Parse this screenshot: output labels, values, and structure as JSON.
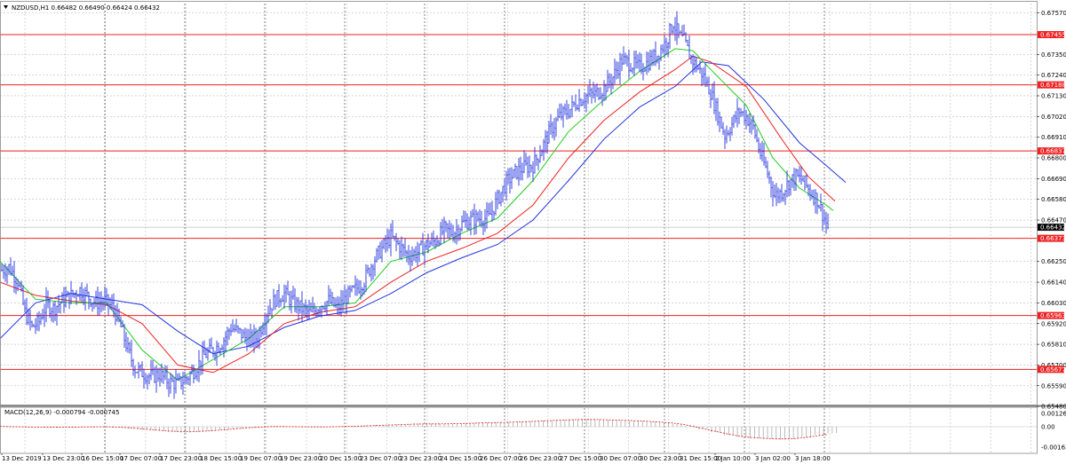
{
  "header": {
    "menu_icon": "triangle-down-icon",
    "text": "NZDUSD,H1  0.66482 0.66490 0.66424 0.66432"
  },
  "macd": {
    "label": "MACD(12,26,9) -0.000794 -0.000745",
    "ticks": [
      "0.001261",
      "0.00",
      "-0.001639"
    ]
  },
  "colors": {
    "candles": "#2233dd",
    "ma_fast": "#22cc22",
    "ma_mid": "#ee2222",
    "ma_slow": "#2233dd",
    "level_line": "#ee2222",
    "level_label_bg": "#ee2222",
    "current_label_bg": "#000000"
  },
  "chart_data": {
    "type": "line",
    "price_axis": {
      "ylim": [
        0.6549,
        0.6762
      ],
      "ticks": [
        "0.67570",
        "0.67455",
        "0.67350",
        "0.67240",
        "0.67188",
        "0.67130",
        "0.67020",
        "0.66910",
        "0.66837",
        "0.66800",
        "0.66690",
        "0.66580",
        "0.66470",
        "0.66373",
        "0.66250",
        "0.66140",
        "0.66030",
        "0.65963",
        "0.65920",
        "0.65810",
        "0.65700",
        "0.65677",
        "0.65590",
        "0.65480"
      ]
    },
    "levels": [
      "0.67455",
      "0.67188",
      "0.66837",
      "0.66373",
      "0.65963",
      "0.65677"
    ],
    "current_price": "0.66432",
    "x_labels": [
      "13 Dec 2019",
      "13 Dec 23:00",
      "16 Dec 15:00",
      "17 Dec 07:00",
      "17 Dec 23:00",
      "18 Dec 15:00",
      "19 Dec 07:00",
      "19 Dec 23:00",
      "20 Dec 15:00",
      "23 Dec 07:00",
      "23 Dec 23:00",
      "24 Dec 15:00",
      "26 Dec 07:00",
      "26 Dec 23:00",
      "27 Dec 15:00",
      "30 Dec 07:00",
      "30 Dec 23:00",
      "31 Dec 15:00",
      "2 Jan 10:00",
      "3 Jan 02:00",
      "3 Jan 18:00"
    ],
    "price_path": [
      [
        0,
        0.662
      ],
      [
        10,
        0.6622
      ],
      [
        20,
        0.6615
      ],
      [
        28,
        0.6598
      ],
      [
        36,
        0.659
      ],
      [
        44,
        0.6593
      ],
      [
        52,
        0.6602
      ],
      [
        60,
        0.66
      ],
      [
        70,
        0.6604
      ],
      [
        80,
        0.6607
      ],
      [
        90,
        0.661
      ],
      [
        100,
        0.6606
      ],
      [
        108,
        0.6603
      ],
      [
        118,
        0.6604
      ],
      [
        128,
        0.66
      ],
      [
        136,
        0.659
      ],
      [
        144,
        0.6578
      ],
      [
        152,
        0.6568
      ],
      [
        160,
        0.6566
      ],
      [
        170,
        0.6564
      ],
      [
        180,
        0.6565
      ],
      [
        190,
        0.6561
      ],
      [
        200,
        0.656
      ],
      [
        210,
        0.6563
      ],
      [
        220,
        0.6568
      ],
      [
        230,
        0.6575
      ],
      [
        240,
        0.6578
      ],
      [
        250,
        0.6582
      ],
      [
        260,
        0.659
      ],
      [
        270,
        0.6587
      ],
      [
        280,
        0.6583
      ],
      [
        290,
        0.6585
      ],
      [
        300,
        0.6598
      ],
      [
        310,
        0.6605
      ],
      [
        320,
        0.6608
      ],
      [
        330,
        0.6603
      ],
      [
        340,
        0.66
      ],
      [
        350,
        0.6597
      ],
      [
        360,
        0.6602
      ],
      [
        370,
        0.6604
      ],
      [
        380,
        0.66
      ],
      [
        390,
        0.6606
      ],
      [
        400,
        0.661
      ],
      [
        410,
        0.6615
      ],
      [
        420,
        0.6625
      ],
      [
        430,
        0.6632
      ],
      [
        440,
        0.6638
      ],
      [
        450,
        0.6633
      ],
      [
        460,
        0.6628
      ],
      [
        470,
        0.663
      ],
      [
        480,
        0.6634
      ],
      [
        490,
        0.6636
      ],
      [
        500,
        0.6642
      ],
      [
        510,
        0.664
      ],
      [
        520,
        0.6645
      ],
      [
        530,
        0.6647
      ],
      [
        540,
        0.6648
      ],
      [
        550,
        0.6648
      ],
      [
        560,
        0.6658
      ],
      [
        570,
        0.6667
      ],
      [
        580,
        0.6672
      ],
      [
        590,
        0.6675
      ],
      [
        600,
        0.6676
      ],
      [
        610,
        0.6685
      ],
      [
        620,
        0.6695
      ],
      [
        630,
        0.6702
      ],
      [
        640,
        0.6705
      ],
      [
        650,
        0.671
      ],
      [
        660,
        0.6713
      ],
      [
        670,
        0.6714
      ],
      [
        680,
        0.6717
      ],
      [
        690,
        0.6723
      ],
      [
        700,
        0.6732
      ],
      [
        710,
        0.673
      ],
      [
        720,
        0.6728
      ],
      [
        730,
        0.6731
      ],
      [
        740,
        0.6735
      ],
      [
        750,
        0.6742
      ],
      [
        758,
        0.6752
      ],
      [
        764,
        0.6745
      ],
      [
        770,
        0.6742
      ],
      [
        776,
        0.6735
      ],
      [
        782,
        0.673
      ],
      [
        790,
        0.6725
      ],
      [
        800,
        0.6715
      ],
      [
        808,
        0.6703
      ],
      [
        816,
        0.6692
      ],
      [
        824,
        0.6698
      ],
      [
        832,
        0.6705
      ],
      [
        840,
        0.6702
      ],
      [
        848,
        0.6696
      ],
      [
        856,
        0.6682
      ],
      [
        864,
        0.6672
      ],
      [
        872,
        0.666
      ],
      [
        880,
        0.6662
      ],
      [
        888,
        0.6667
      ],
      [
        896,
        0.667
      ],
      [
        904,
        0.6668
      ],
      [
        912,
        0.6662
      ],
      [
        920,
        0.6658
      ],
      [
        928,
        0.6648
      ],
      [
        932,
        0.6643
      ]
    ],
    "ma_fast_path": [
      [
        0,
        0.6625
      ],
      [
        40,
        0.6605
      ],
      [
        80,
        0.6603
      ],
      [
        120,
        0.6603
      ],
      [
        160,
        0.6578
      ],
      [
        200,
        0.6562
      ],
      [
        240,
        0.6573
      ],
      [
        280,
        0.6584
      ],
      [
        320,
        0.6601
      ],
      [
        360,
        0.6601
      ],
      [
        400,
        0.6603
      ],
      [
        440,
        0.6625
      ],
      [
        480,
        0.663
      ],
      [
        520,
        0.664
      ],
      [
        560,
        0.6648
      ],
      [
        600,
        0.6668
      ],
      [
        640,
        0.6694
      ],
      [
        680,
        0.6711
      ],
      [
        720,
        0.6726
      ],
      [
        760,
        0.6738
      ],
      [
        780,
        0.6737
      ],
      [
        800,
        0.6727
      ],
      [
        840,
        0.6708
      ],
      [
        870,
        0.668
      ],
      [
        900,
        0.6664
      ],
      [
        930,
        0.6655
      ],
      [
        938,
        0.6652
      ]
    ],
    "ma_mid_path": [
      [
        0,
        0.6614
      ],
      [
        40,
        0.6607
      ],
      [
        80,
        0.6604
      ],
      [
        120,
        0.6602
      ],
      [
        160,
        0.6592
      ],
      [
        200,
        0.657
      ],
      [
        240,
        0.6566
      ],
      [
        280,
        0.6576
      ],
      [
        320,
        0.6592
      ],
      [
        360,
        0.6598
      ],
      [
        400,
        0.6601
      ],
      [
        440,
        0.6614
      ],
      [
        480,
        0.6625
      ],
      [
        520,
        0.6632
      ],
      [
        560,
        0.664
      ],
      [
        600,
        0.6655
      ],
      [
        640,
        0.668
      ],
      [
        680,
        0.67
      ],
      [
        720,
        0.6715
      ],
      [
        760,
        0.6727
      ],
      [
        780,
        0.6734
      ],
      [
        800,
        0.6731
      ],
      [
        840,
        0.6718
      ],
      [
        880,
        0.669
      ],
      [
        910,
        0.667
      ],
      [
        940,
        0.6657
      ]
    ],
    "ma_slow_path": [
      [
        0,
        0.6584
      ],
      [
        40,
        0.6603
      ],
      [
        80,
        0.6608
      ],
      [
        120,
        0.6605
      ],
      [
        160,
        0.6602
      ],
      [
        200,
        0.6588
      ],
      [
        240,
        0.6576
      ],
      [
        280,
        0.658
      ],
      [
        320,
        0.659
      ],
      [
        360,
        0.6596
      ],
      [
        400,
        0.6599
      ],
      [
        440,
        0.6608
      ],
      [
        480,
        0.6619
      ],
      [
        520,
        0.6627
      ],
      [
        560,
        0.6634
      ],
      [
        600,
        0.6647
      ],
      [
        640,
        0.6668
      ],
      [
        680,
        0.669
      ],
      [
        720,
        0.6707
      ],
      [
        760,
        0.6718
      ],
      [
        790,
        0.6731
      ],
      [
        820,
        0.6729
      ],
      [
        860,
        0.6711
      ],
      [
        900,
        0.6688
      ],
      [
        930,
        0.6676
      ],
      [
        952,
        0.6667
      ]
    ],
    "macd_hist": [
      0.05,
      -0.01,
      -0.03,
      -0.05,
      -0.05,
      -0.04,
      -0.02,
      0,
      0.02,
      -0.05,
      -0.15,
      -0.3,
      -0.4,
      -0.5,
      -0.55,
      -0.5,
      -0.4,
      -0.3,
      -0.2,
      -0.1,
      0,
      0.05,
      0.02,
      -0.02,
      -0.03,
      -0.02,
      0,
      0.05,
      0.1,
      0.15,
      0.2,
      0.25,
      0.3,
      0.3,
      0.28,
      0.3,
      0.35,
      0.4,
      0.42,
      0.45,
      0.5,
      0.55,
      0.6,
      0.65,
      0.7,
      0.72,
      0.7,
      0.65,
      0.6,
      0.55,
      0.5,
      0.4,
      0.3,
      0.1,
      -0.2,
      -0.5,
      -0.8,
      -1.0,
      -1.1,
      -1.15,
      -1.2,
      -1.15,
      -1.0,
      -0.8,
      -0.6
    ],
    "macd_signal": [
      0.03,
      0.0,
      -0.02,
      -0.04,
      -0.05,
      -0.04,
      -0.03,
      -0.02,
      -0.01,
      -0.03,
      -0.1,
      -0.2,
      -0.3,
      -0.4,
      -0.45,
      -0.45,
      -0.4,
      -0.32,
      -0.22,
      -0.12,
      -0.04,
      0.02,
      0.02,
      0.0,
      -0.02,
      -0.02,
      0,
      0.03,
      0.07,
      0.12,
      0.16,
      0.2,
      0.25,
      0.27,
      0.27,
      0.28,
      0.31,
      0.35,
      0.38,
      0.41,
      0.45,
      0.5,
      0.55,
      0.6,
      0.65,
      0.68,
      0.68,
      0.65,
      0.61,
      0.57,
      0.52,
      0.44,
      0.35,
      0.18,
      -0.08,
      -0.35,
      -0.62,
      -0.84,
      -1.0,
      -1.08,
      -1.14,
      -1.14,
      -1.05,
      -0.88,
      -0.72
    ],
    "grid": true
  }
}
